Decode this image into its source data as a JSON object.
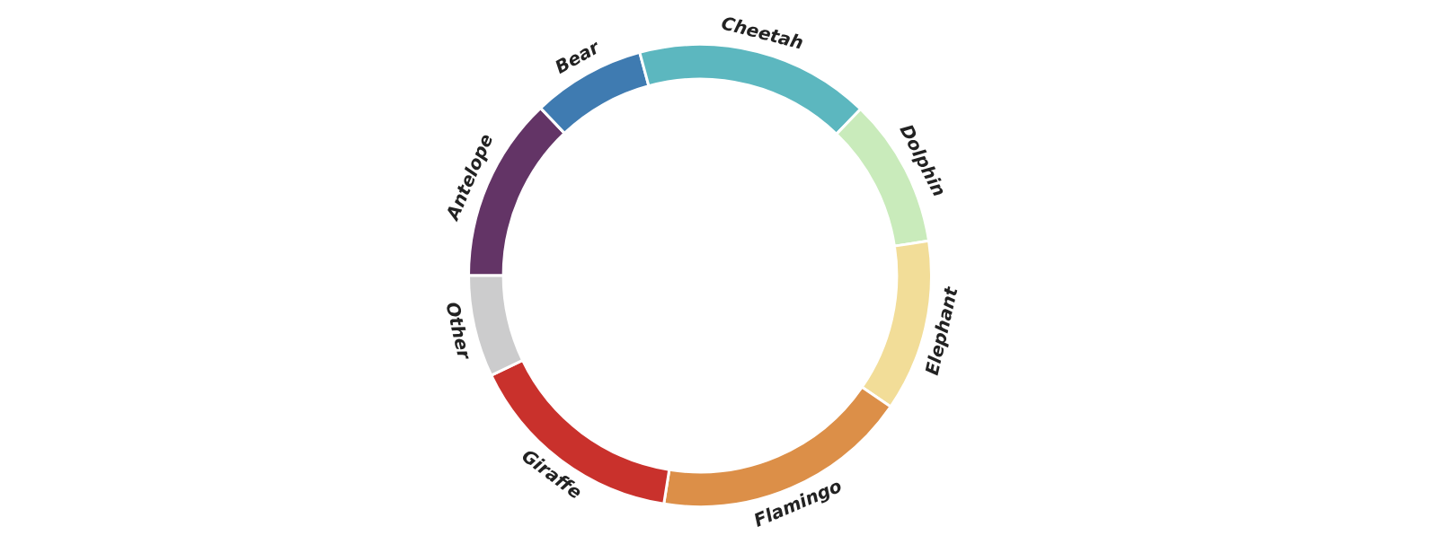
{
  "chart_data": {
    "type": "donut",
    "categories": [
      "Antelope",
      "Bear",
      "Cheetah",
      "Dolphin",
      "Elephant",
      "Flamingo",
      "Giraffe",
      "Other"
    ],
    "values": [
      12.9,
      7.9,
      16.4,
      10.4,
      12.0,
      17.9,
      15.4,
      7.1
    ],
    "colors": [
      "#633466",
      "#3f7bb1",
      "#5cb7bf",
      "#c9ebbb",
      "#f2dd98",
      "#dc8f48",
      "#c9312c",
      "#cccccd"
    ],
    "legend": false
  }
}
